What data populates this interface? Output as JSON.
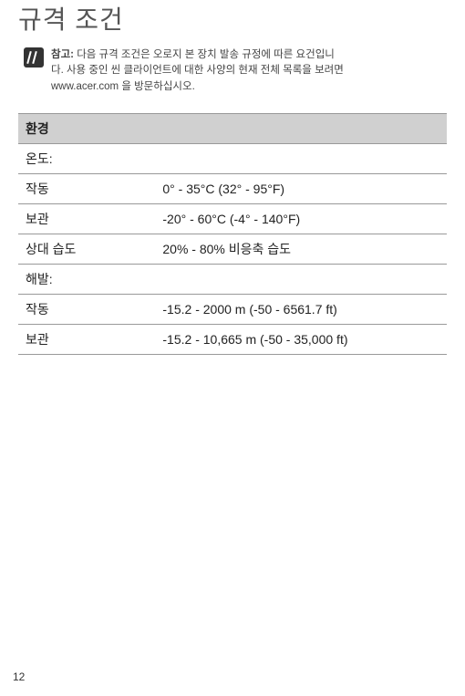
{
  "title": "규격 조건",
  "note": {
    "label": "참고:",
    "text_line1": " 다음 규격 조건은 오로지 본 장치 발송 규정에 따른 요건입니",
    "text_line2": "다. 사용 중인 씬 클라이언트에 대한 사양의 현재 전체 목록을 보려면",
    "text_line3": "www.acer.com 을 방문하십시오."
  },
  "table": {
    "header": "환경",
    "temp_section": "온도:",
    "temp_operating_label": "작동",
    "temp_operating_value": "0° - 35°C (32° - 95°F)",
    "temp_storage_label": "보관",
    "temp_storage_value": "-20° - 60°C (-4° - 140°F)",
    "humidity_label": "상대 습도",
    "humidity_value": "20% - 80% 비응축 습도",
    "altitude_section": "해발:",
    "alt_operating_label": "작동",
    "alt_operating_value": "-15.2 - 2000 m (-50 - 6561.7 ft)",
    "alt_storage_label": "보관",
    "alt_storage_value": "-15.2 - 10,665 m (-50 - 35,000 ft)"
  },
  "page_number": "12"
}
